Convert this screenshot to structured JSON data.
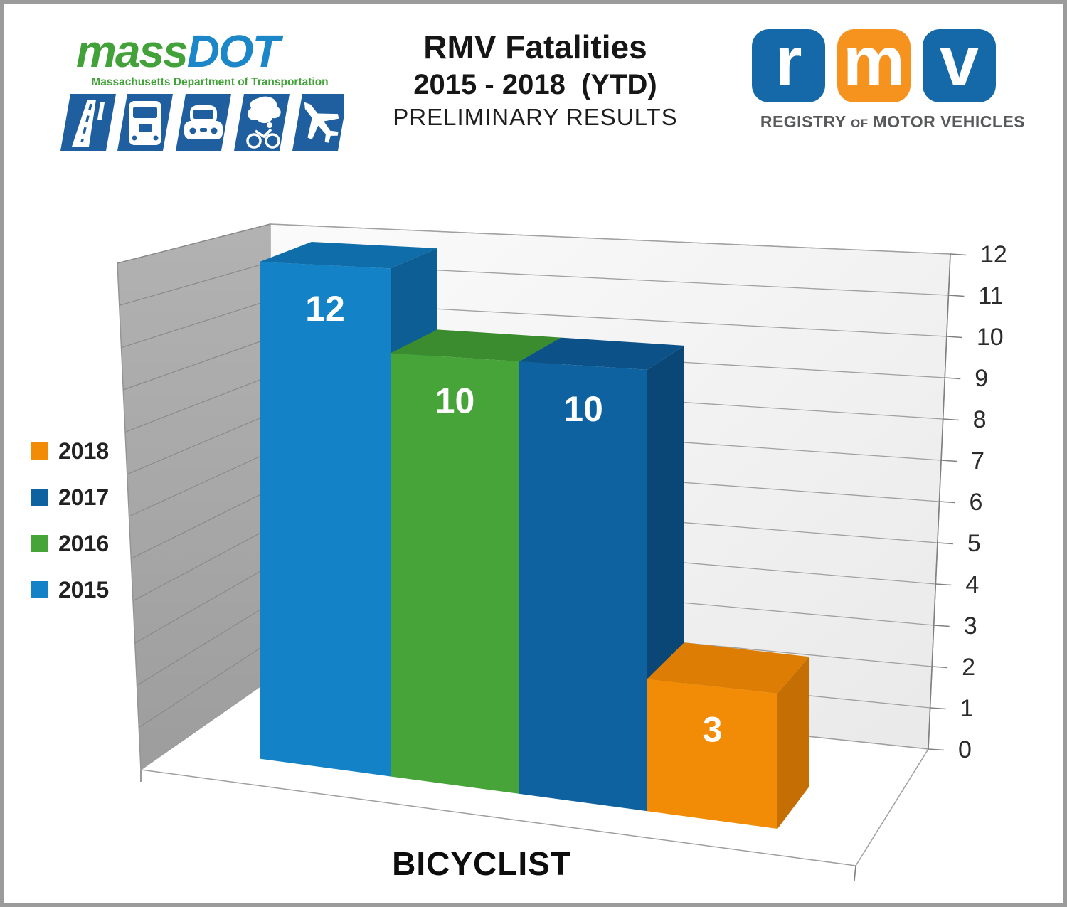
{
  "header": {
    "massdot": {
      "brand_mass": "mass",
      "brand_dot": "DOT",
      "subtitle": "Massachusetts Department of Transportation"
    },
    "title": {
      "line1": "RMV Fatalities",
      "line2": "2015 - 2018  (YTD)",
      "line3": "PRELIMINARY RESULTS"
    },
    "rmv": {
      "letters": [
        "r",
        "m",
        "v"
      ],
      "caption_word1": "REGISTRY",
      "caption_word2": "OF",
      "caption_word3": "MOTOR VEHICLES"
    }
  },
  "legend": {
    "position": "left",
    "items": [
      {
        "label": "2018",
        "color": "#f28b05"
      },
      {
        "label": "2017",
        "color": "#0f62a0"
      },
      {
        "label": "2016",
        "color": "#47a438"
      },
      {
        "label": "2015",
        "color": "#1482c6"
      }
    ]
  },
  "chart_data": {
    "type": "bar",
    "projection": "3d-perspective",
    "title": "RMV Fatalities 2015 - 2018 (YTD) PRELIMINARY RESULTS",
    "category_label": "BICYCLIST",
    "categories": [
      "BICYCLIST"
    ],
    "series": [
      {
        "name": "2015",
        "value": 12,
        "front": "#1482c6",
        "top": "#0f6da9",
        "side": "#0d5e95"
      },
      {
        "name": "2016",
        "value": 10,
        "front": "#47a438",
        "top": "#3b8c2e",
        "side": "#347a28"
      },
      {
        "name": "2017",
        "value": 10,
        "front": "#0f62a0",
        "top": "#0c5288",
        "side": "#0a4777"
      },
      {
        "name": "2018",
        "value": 3,
        "front": "#f28b05",
        "top": "#de7d04",
        "side": "#c56e03"
      }
    ],
    "value_labels": [
      12,
      10,
      10,
      3
    ],
    "y_axis": {
      "min": 0,
      "max": 12,
      "step": 1,
      "ticks": [
        0,
        1,
        2,
        3,
        4,
        5,
        6,
        7,
        8,
        9,
        10,
        11,
        12
      ]
    },
    "grid": true,
    "legend_entries": [
      "2018",
      "2017",
      "2016",
      "2015"
    ]
  }
}
